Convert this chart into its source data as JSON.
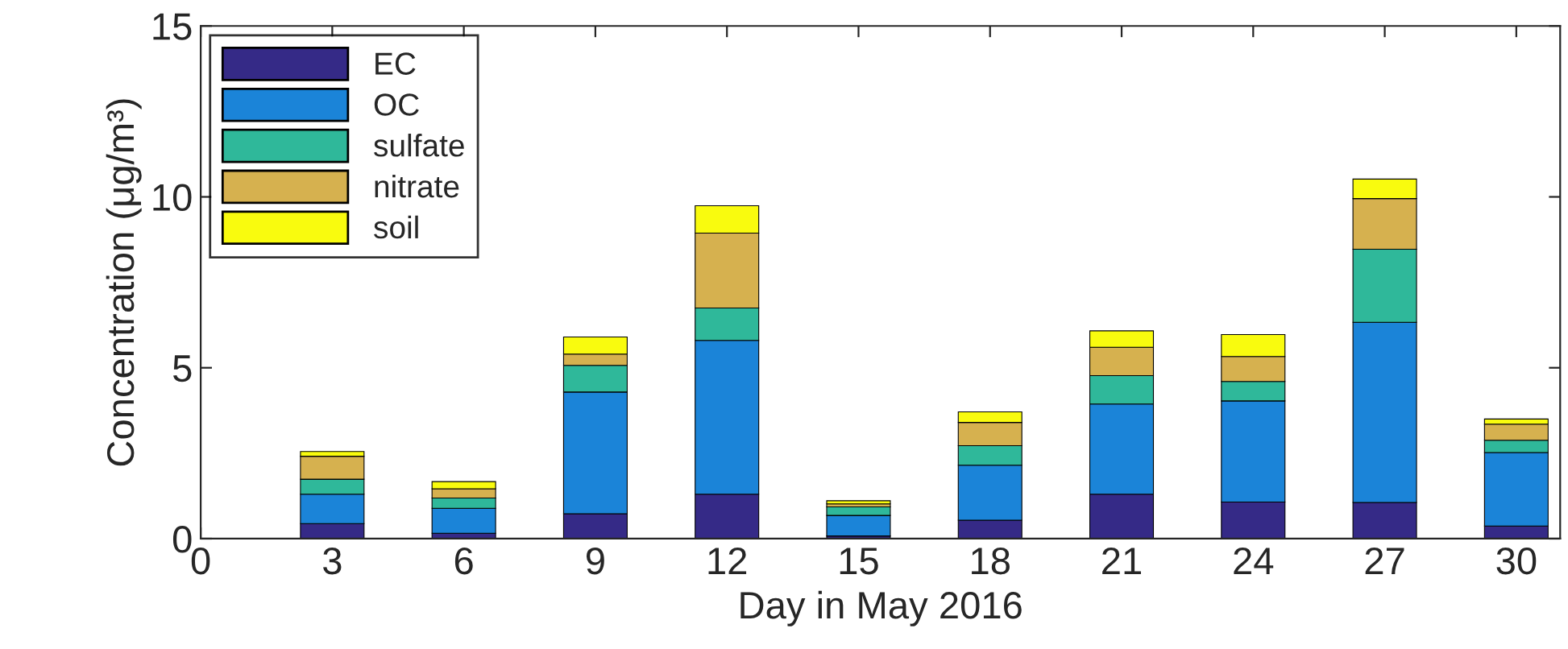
{
  "chart_data": {
    "type": "bar",
    "stacked": true,
    "xlabel": "Day in May 2016",
    "ylabel": "Concentration (μg/m³)",
    "x": [
      3,
      6,
      9,
      12,
      15,
      18,
      21,
      24,
      27,
      30
    ],
    "xlim": [
      0,
      31
    ],
    "xticks": [
      0,
      3,
      6,
      9,
      12,
      15,
      18,
      21,
      24,
      27,
      30
    ],
    "ylim": [
      0,
      15
    ],
    "yticks": [
      0,
      5,
      10,
      15
    ],
    "legend": "top left",
    "grid": false,
    "series": [
      {
        "name": "EC",
        "color": "#352a87",
        "values": [
          0.44,
          0.16,
          0.73,
          1.3,
          0.08,
          0.54,
          1.3,
          1.07,
          1.06,
          0.37
        ]
      },
      {
        "name": "OC",
        "color": "#1b84d8",
        "values": [
          0.86,
          0.73,
          3.56,
          4.5,
          0.6,
          1.61,
          2.64,
          2.96,
          5.27,
          2.15
        ]
      },
      {
        "name": "sulfate",
        "color": "#2fb89a",
        "values": [
          0.44,
          0.3,
          0.78,
          0.95,
          0.25,
          0.57,
          0.83,
          0.57,
          2.14,
          0.36
        ]
      },
      {
        "name": "nitrate",
        "color": "#d6b14f",
        "values": [
          0.67,
          0.27,
          0.33,
          2.19,
          0.09,
          0.68,
          0.83,
          0.73,
          1.48,
          0.47
        ]
      },
      {
        "name": "soil",
        "color": "#f9fb0e",
        "values": [
          0.14,
          0.21,
          0.5,
          0.8,
          0.09,
          0.31,
          0.48,
          0.64,
          0.57,
          0.15
        ]
      }
    ]
  }
}
